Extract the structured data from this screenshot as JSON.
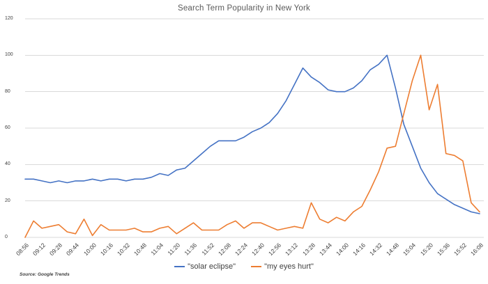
{
  "chart_data": {
    "type": "line",
    "title": "Search Term Popularity in New York",
    "source_note": "Source: Google Trends",
    "x_start": "08:56",
    "x_end": "16:08",
    "x_step_minutes": 8,
    "points_per_tick": 2,
    "x_tick_labels": [
      "08:56",
      "09:12",
      "09:28",
      "09:44",
      "10:00",
      "10:16",
      "10:32",
      "10:48",
      "11:04",
      "11:20",
      "11:36",
      "11:52",
      "12:08",
      "12:24",
      "12:40",
      "12:56",
      "13:12",
      "13:28",
      "13:44",
      "14:00",
      "14:16",
      "14:32",
      "14:48",
      "15:04",
      "15:20",
      "15:36",
      "15:52",
      "16:08"
    ],
    "y_ticks": [
      0,
      20,
      40,
      60,
      80,
      100,
      120
    ],
    "ylim": [
      0,
      120
    ],
    "grid": "horizontal",
    "legend_position": "bottom",
    "series": [
      {
        "name": "\"solar eclipse\"",
        "color": "#4472C4",
        "values": [
          32,
          32,
          31,
          30,
          31,
          30,
          31,
          31,
          32,
          31,
          32,
          32,
          31,
          32,
          32,
          33,
          35,
          34,
          37,
          38,
          42,
          46,
          50,
          53,
          53,
          53,
          55,
          58,
          60,
          63,
          68,
          75,
          84,
          93,
          88,
          85,
          81,
          80,
          80,
          82,
          86,
          92,
          95,
          100,
          82,
          62,
          50,
          38,
          30,
          24,
          21,
          18,
          16,
          14,
          13
        ]
      },
      {
        "name": "\"my eyes hurt\"",
        "color": "#ED7D31",
        "values": [
          0,
          9,
          5,
          6,
          7,
          3,
          2,
          10,
          1,
          7,
          4,
          4,
          4,
          5,
          3,
          3,
          5,
          6,
          2,
          5,
          8,
          4,
          4,
          4,
          7,
          9,
          5,
          8,
          8,
          6,
          4,
          5,
          6,
          5,
          19,
          10,
          8,
          11,
          9,
          14,
          17,
          26,
          36,
          49,
          50,
          68,
          86,
          100,
          70,
          84,
          46,
          45,
          42,
          19,
          14
        ]
      }
    ]
  },
  "colors": {
    "background": "#FFFFFF",
    "gridline": "#D9D9D9",
    "title_text": "#595959",
    "tick_text": "#404040"
  }
}
